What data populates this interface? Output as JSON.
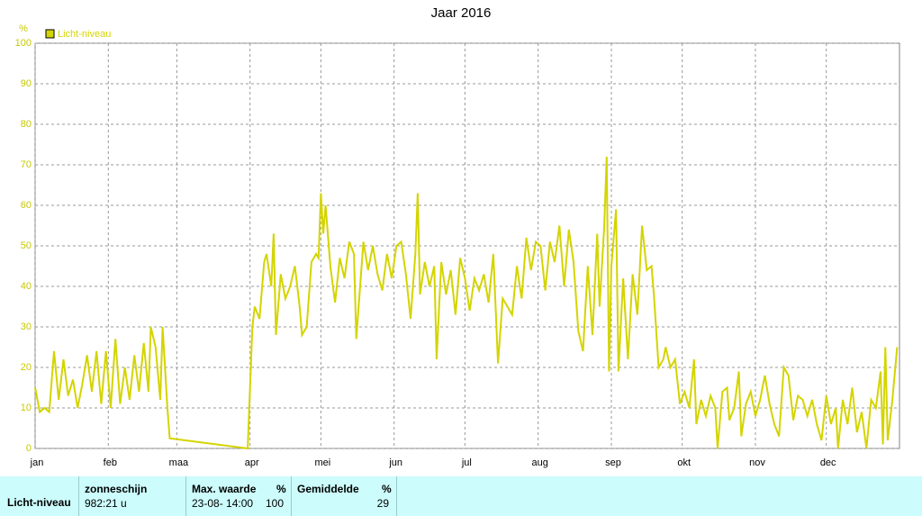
{
  "chart_data": {
    "type": "line",
    "title": "Jaar 2016",
    "y_unit": "%",
    "x": [
      1,
      3,
      5,
      7,
      9,
      11,
      13,
      15,
      17,
      19,
      21,
      23,
      25,
      27,
      29,
      31,
      33,
      35,
      37,
      39,
      41,
      43,
      45,
      47,
      49,
      50,
      52,
      54,
      55,
      57,
      58,
      91,
      93,
      94,
      96,
      98,
      99,
      101,
      102,
      103,
      105,
      107,
      109,
      111,
      113,
      114,
      116,
      118,
      120,
      121,
      122,
      123,
      124,
      126,
      128,
      130,
      132,
      134,
      136,
      137,
      138,
      140,
      142,
      144,
      146,
      148,
      150,
      152,
      154,
      156,
      158,
      160,
      162,
      163,
      164,
      166,
      168,
      170,
      171,
      173,
      175,
      177,
      179,
      181,
      183,
      185,
      187,
      189,
      191,
      193,
      195,
      197,
      199,
      201,
      203,
      205,
      207,
      209,
      211,
      213,
      215,
      217,
      219,
      221,
      223,
      225,
      227,
      229,
      231,
      233,
      235,
      237,
      239,
      240,
      242,
      243,
      244,
      245,
      247,
      248,
      250,
      252,
      254,
      256,
      258,
      260,
      262,
      263,
      265,
      267,
      268,
      270,
      272,
      274,
      276,
      278,
      280,
      281,
      283,
      285,
      287,
      289,
      290,
      292,
      294,
      295,
      297,
      299,
      300,
      302,
      304,
      306,
      308,
      310,
      312,
      314,
      316,
      318,
      320,
      322,
      324,
      326,
      328,
      330,
      332,
      334,
      336,
      338,
      340,
      341,
      343,
      345,
      347,
      349,
      351,
      353,
      355,
      357,
      359,
      360,
      361,
      362,
      364,
      366
    ],
    "series": [
      {
        "name": "Licht-niveau",
        "color": "#d4d400",
        "values": [
          15,
          9,
          10,
          9,
          24,
          12,
          22,
          13,
          17,
          10,
          16,
          23,
          14,
          24,
          11,
          24,
          10,
          27,
          11,
          20,
          12,
          23,
          14,
          26,
          14,
          30,
          25,
          12,
          30,
          10,
          2.5,
          0,
          30,
          35,
          32,
          46,
          48,
          40,
          53,
          28,
          43,
          37,
          40,
          45,
          35,
          28,
          30,
          46,
          48,
          47,
          63,
          53,
          60,
          45,
          36,
          47,
          42,
          51,
          48,
          27,
          35,
          51,
          44,
          50,
          43,
          39,
          48,
          42,
          50,
          51,
          43,
          32,
          48,
          63,
          38,
          46,
          40,
          45,
          22,
          46,
          38,
          44,
          33,
          47,
          42,
          34,
          42,
          39,
          43,
          36,
          48,
          21,
          37,
          35,
          33,
          45,
          37,
          52,
          44,
          51,
          50,
          39,
          51,
          46,
          55,
          40,
          54,
          46,
          29,
          24,
          45,
          28,
          53,
          35,
          55,
          72,
          19,
          45,
          59,
          19,
          42,
          22,
          43,
          33,
          55,
          44,
          45,
          38,
          20,
          22,
          25,
          20,
          22,
          11,
          14,
          10,
          22,
          6,
          12,
          8,
          13,
          10,
          0,
          14,
          15,
          7,
          10,
          19,
          3,
          11,
          14,
          8,
          12,
          18,
          11,
          6,
          3,
          20,
          18,
          7,
          13,
          12,
          8,
          12,
          6,
          2,
          13,
          6,
          10,
          0,
          12,
          6,
          15,
          4,
          9,
          0,
          12,
          10,
          19,
          1,
          25,
          2,
          12,
          25
        ]
      }
    ],
    "xlim": [
      1,
      367
    ],
    "ylim": [
      0,
      100
    ],
    "xticks": [
      {
        "value": 1,
        "label": "jan"
      },
      {
        "value": 32,
        "label": "feb"
      },
      {
        "value": 61,
        "label": "maa"
      },
      {
        "value": 92,
        "label": "apr"
      },
      {
        "value": 122,
        "label": "mei"
      },
      {
        "value": 153,
        "label": "jun"
      },
      {
        "value": 183,
        "label": "jul"
      },
      {
        "value": 214,
        "label": "aug"
      },
      {
        "value": 245,
        "label": "sep"
      },
      {
        "value": 275,
        "label": "okt"
      },
      {
        "value": 306,
        "label": "nov"
      },
      {
        "value": 336,
        "label": "dec"
      }
    ],
    "yticks": [
      0,
      10,
      20,
      30,
      40,
      50,
      60,
      70,
      80,
      90,
      100
    ],
    "grid": true
  },
  "table": {
    "row_label": "Licht-niveau",
    "col1": {
      "header": "zonneschijn",
      "value": "982:21 u"
    },
    "col2": {
      "header": "Max. waarde",
      "unit": "%",
      "date": "23-08- 14:00",
      "value": "100"
    },
    "col3": {
      "header": "Gemiddelde",
      "unit": "%",
      "value": "29"
    }
  }
}
